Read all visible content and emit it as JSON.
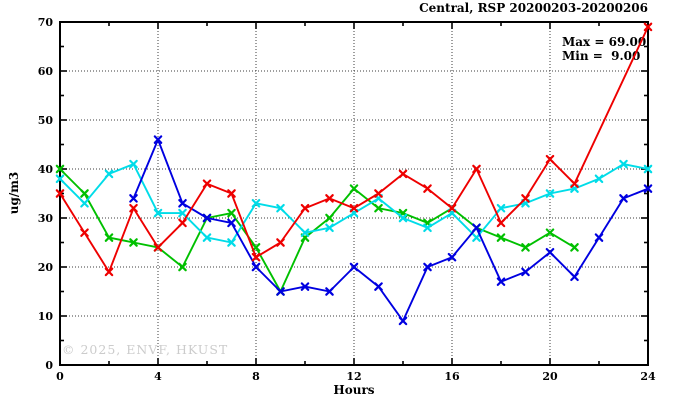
{
  "chart_data": {
    "type": "line",
    "title": "Central, RSP 20200203-20200206",
    "xlabel": "Hours",
    "ylabel": "ug/m3",
    "xlim": [
      0,
      24
    ],
    "ylim": [
      0,
      70
    ],
    "x_major_ticks": [
      0,
      4,
      8,
      12,
      16,
      20,
      24
    ],
    "x_minor_ticks": [
      2,
      6,
      10,
      14,
      18,
      22
    ],
    "y_major_ticks": [
      0,
      10,
      20,
      30,
      40,
      50,
      60,
      70
    ],
    "y_minor_ticks": [
      5,
      15,
      25,
      35,
      45,
      55,
      65
    ],
    "grid": "dotted lines at major ticks, boxed axes, no legend",
    "annotation_max": "Max = 69.00",
    "annotation_min": "Min =  9.00",
    "watermark": "© 2025, ENVF, HKUST",
    "series": [
      {
        "name": "green-series",
        "color": "#00c000",
        "x": [
          0,
          1,
          2,
          3,
          4,
          5,
          6,
          7,
          8,
          9,
          10,
          11,
          12,
          13,
          14,
          15,
          16,
          17,
          18,
          19,
          20,
          21
        ],
        "y": [
          40,
          35,
          26,
          25,
          24,
          20,
          30,
          31,
          24,
          15,
          26,
          30,
          36,
          32,
          31,
          29,
          32,
          28,
          26,
          24,
          27,
          24
        ]
      },
      {
        "name": "cyan-series",
        "color": "#00dce8",
        "x": [
          0,
          1,
          2,
          3,
          4,
          5,
          6,
          7,
          8,
          9,
          10,
          11,
          12,
          13,
          14,
          15,
          16,
          17,
          18,
          19,
          20,
          21,
          22,
          23,
          24
        ],
        "y": [
          38,
          33,
          39,
          41,
          31,
          31,
          26,
          25,
          33,
          32,
          27,
          28,
          31,
          34,
          30,
          28,
          31,
          26,
          32,
          33,
          35,
          36,
          38,
          41,
          40
        ]
      },
      {
        "name": "blue-series",
        "color": "#0000e0",
        "x": [
          3,
          4,
          5,
          6,
          7,
          8,
          9,
          10,
          11,
          12,
          13,
          14,
          15,
          16,
          17,
          18,
          19,
          20,
          21,
          22,
          23,
          24
        ],
        "y": [
          34,
          46,
          33,
          30,
          29,
          20,
          15,
          16,
          15,
          20,
          16,
          9,
          20,
          22,
          28,
          17,
          19,
          23,
          18,
          26,
          34,
          36
        ]
      },
      {
        "name": "red-series",
        "color": "#ee0000",
        "x": [
          0,
          1,
          2,
          3,
          4,
          5,
          6,
          7,
          8,
          9,
          10,
          11,
          12,
          13,
          14,
          15,
          16,
          17,
          18,
          19,
          20,
          21,
          24
        ],
        "y": [
          35,
          27,
          19,
          32,
          24,
          29,
          37,
          35,
          22,
          25,
          32,
          34,
          32,
          35,
          39,
          36,
          32,
          40,
          29,
          34,
          42,
          37,
          69
        ]
      }
    ]
  }
}
